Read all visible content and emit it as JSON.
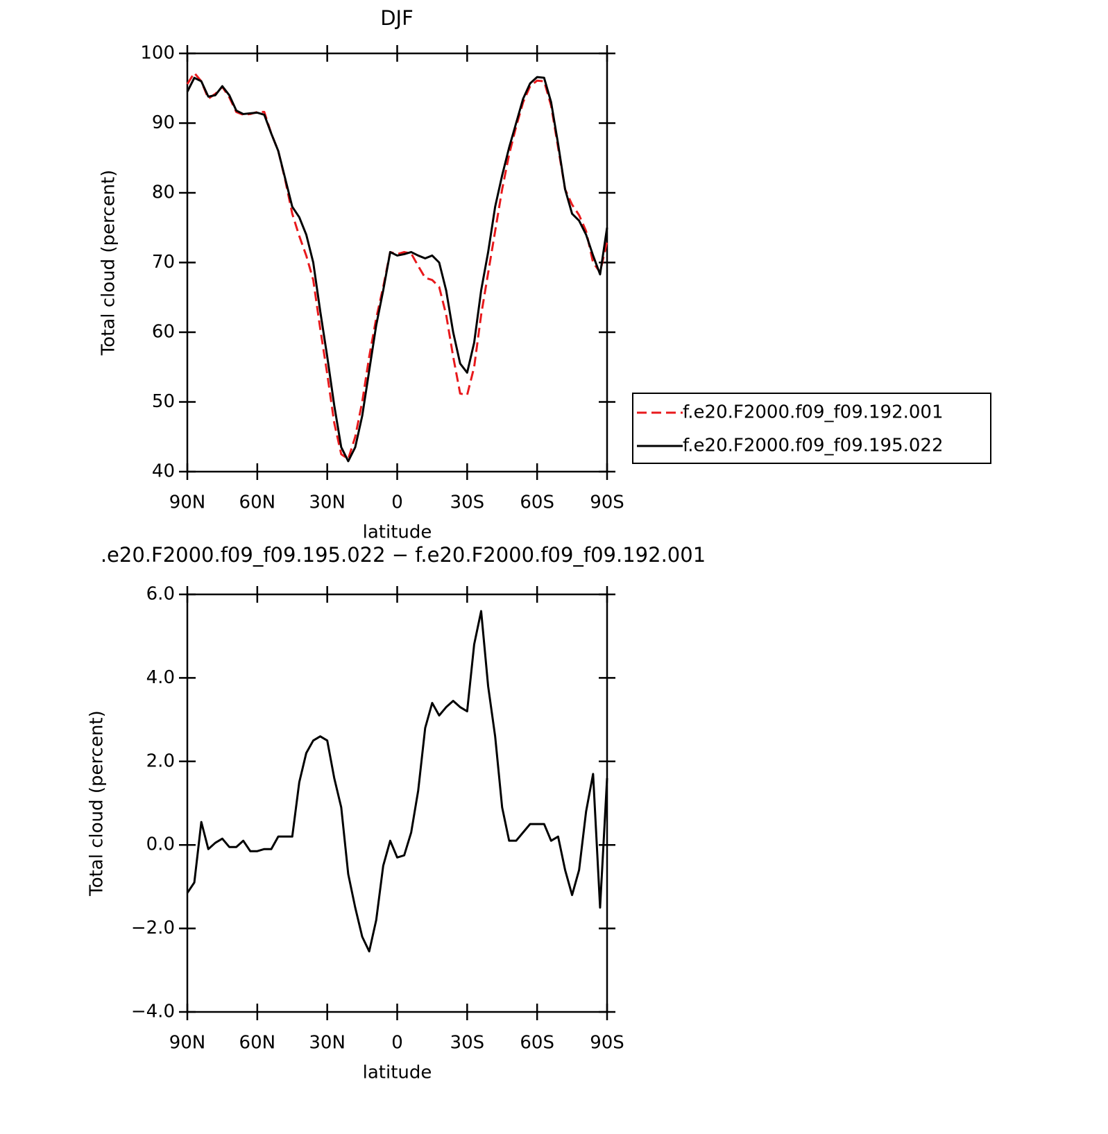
{
  "chart_data": [
    {
      "type": "line",
      "title": "DJF",
      "x_label": "latitude",
      "y_label": "Total cloud (percent)",
      "x": [
        90,
        87,
        84,
        81,
        78,
        75,
        72,
        69,
        66,
        63,
        60,
        57,
        54,
        51,
        48,
        45,
        42,
        39,
        36,
        33,
        30,
        27,
        24,
        21,
        18,
        15,
        12,
        9,
        6,
        3,
        0,
        -3,
        -6,
        -9,
        -12,
        -15,
        -18,
        -21,
        -24,
        -27,
        -30,
        -33,
        -36,
        -39,
        -42,
        -45,
        -48,
        -51,
        -54,
        -57,
        -60,
        -63,
        -66,
        -69,
        -72,
        -75,
        -78,
        -81,
        -84,
        -87,
        -90
      ],
      "xlim": [
        90,
        -90
      ],
      "xticks": [
        {
          "value": 90,
          "label": "90N"
        },
        {
          "value": 60,
          "label": "60N"
        },
        {
          "value": 30,
          "label": "30N"
        },
        0,
        {
          "value": -30,
          "label": "30S"
        },
        {
          "value": -60,
          "label": "60S"
        },
        {
          "value": -90,
          "label": "90S"
        }
      ],
      "ylim": [
        40,
        100
      ],
      "yticks": [
        40,
        50,
        60,
        70,
        80,
        90,
        100
      ],
      "legend": "right",
      "series": [
        {
          "name": "f.e20.F2000.f09_f09.192.001",
          "color": "#e8191c",
          "style": "dashed",
          "values": [
            95.6,
            97.2,
            96.0,
            93.5,
            94.2,
            95.2,
            93.7,
            91.6,
            91.2,
            91.3,
            91.6,
            91.6,
            88.5,
            86.0,
            81.8,
            77.0,
            73.8,
            71.0,
            67.5,
            60.5,
            54.0,
            47.0,
            42.5,
            41.8,
            45.0,
            50.0,
            56.5,
            62.0,
            66.5,
            71.5,
            71.2,
            71.5,
            71.3,
            69.5,
            67.8,
            67.5,
            66.5,
            62.5,
            56.5,
            51.2,
            51.0,
            55.0,
            62.5,
            68.5,
            74.5,
            80.5,
            85.5,
            89.5,
            93.0,
            95.3,
            96.1,
            96.0,
            92.5,
            86.5,
            80.5,
            78.3,
            76.8,
            74.5,
            70.0,
            68.6,
            73.0
          ]
        },
        {
          "name": "f.e20.F2000.f09_f09.195.022",
          "color": "#000000",
          "style": "solid",
          "values": [
            94.5,
            96.5,
            96.0,
            93.8,
            94.0,
            95.3,
            94.0,
            91.8,
            91.3,
            91.4,
            91.5,
            91.2,
            88.5,
            86.0,
            82.0,
            78.0,
            76.5,
            74.0,
            70.0,
            63.0,
            56.5,
            49.5,
            43.5,
            41.5,
            43.5,
            48.0,
            54.5,
            61.0,
            66.0,
            71.5,
            71.0,
            71.2,
            71.5,
            71.0,
            70.6,
            71.0,
            70.0,
            66.0,
            60.0,
            55.5,
            54.2,
            58.5,
            66.0,
            71.5,
            78.0,
            82.5,
            86.5,
            90.0,
            93.5,
            95.7,
            96.6,
            96.5,
            93.0,
            87.0,
            80.5,
            77.0,
            76.0,
            74.0,
            71.0,
            68.3,
            75.0
          ]
        }
      ]
    },
    {
      "type": "line",
      "title": ".e20.F2000.f09_f09.195.022 − f.e20.F2000.f09_f09.192.001",
      "x_label": "latitude",
      "y_label": "Total cloud (percent)",
      "x": [
        90,
        87,
        84,
        81,
        78,
        75,
        72,
        69,
        66,
        63,
        60,
        57,
        54,
        51,
        48,
        45,
        42,
        39,
        36,
        33,
        30,
        27,
        24,
        21,
        18,
        15,
        12,
        9,
        6,
        3,
        0,
        -3,
        -6,
        -9,
        -12,
        -15,
        -18,
        -21,
        -24,
        -27,
        -30,
        -33,
        -36,
        -39,
        -42,
        -45,
        -48,
        -51,
        -54,
        -57,
        -60,
        -63,
        -66,
        -69,
        -72,
        -75,
        -78,
        -81,
        -84,
        -87,
        -90
      ],
      "xlim": [
        90,
        -90
      ],
      "xticks": [
        {
          "value": 90,
          "label": "90N"
        },
        {
          "value": 60,
          "label": "60N"
        },
        {
          "value": 30,
          "label": "30N"
        },
        0,
        {
          "value": -30,
          "label": "30S"
        },
        {
          "value": -60,
          "label": "60S"
        },
        {
          "value": -90,
          "label": "90S"
        }
      ],
      "ylim": [
        -4,
        6
      ],
      "yticks": [
        {
          "value": -4,
          "label": "−4.0"
        },
        {
          "value": -2,
          "label": "−2.0"
        },
        {
          "value": 0,
          "label": "0.0"
        },
        {
          "value": 2,
          "label": "2.0"
        },
        {
          "value": 4,
          "label": "4.0"
        },
        {
          "value": 6,
          "label": "6.0"
        }
      ],
      "series": [
        {
          "color": "#000000",
          "style": "solid",
          "values": [
            -1.15,
            -0.9,
            0.55,
            -0.1,
            0.05,
            0.15,
            -0.05,
            -0.05,
            0.1,
            -0.15,
            -0.15,
            -0.1,
            -0.1,
            0.2,
            0.2,
            0.2,
            1.5,
            2.2,
            2.5,
            2.6,
            2.5,
            1.6,
            0.9,
            -0.7,
            -1.5,
            -2.2,
            -2.55,
            -1.8,
            -0.5,
            0.1,
            -0.3,
            -0.25,
            0.3,
            1.3,
            2.8,
            3.4,
            3.1,
            3.3,
            3.45,
            3.3,
            3.2,
            4.8,
            5.6,
            3.8,
            2.6,
            0.9,
            0.1,
            0.1,
            0.3,
            0.5,
            0.5,
            0.5,
            0.1,
            0.2,
            -0.6,
            -1.2,
            -0.6,
            0.8,
            1.7,
            -1.5,
            1.6
          ]
        }
      ]
    }
  ]
}
